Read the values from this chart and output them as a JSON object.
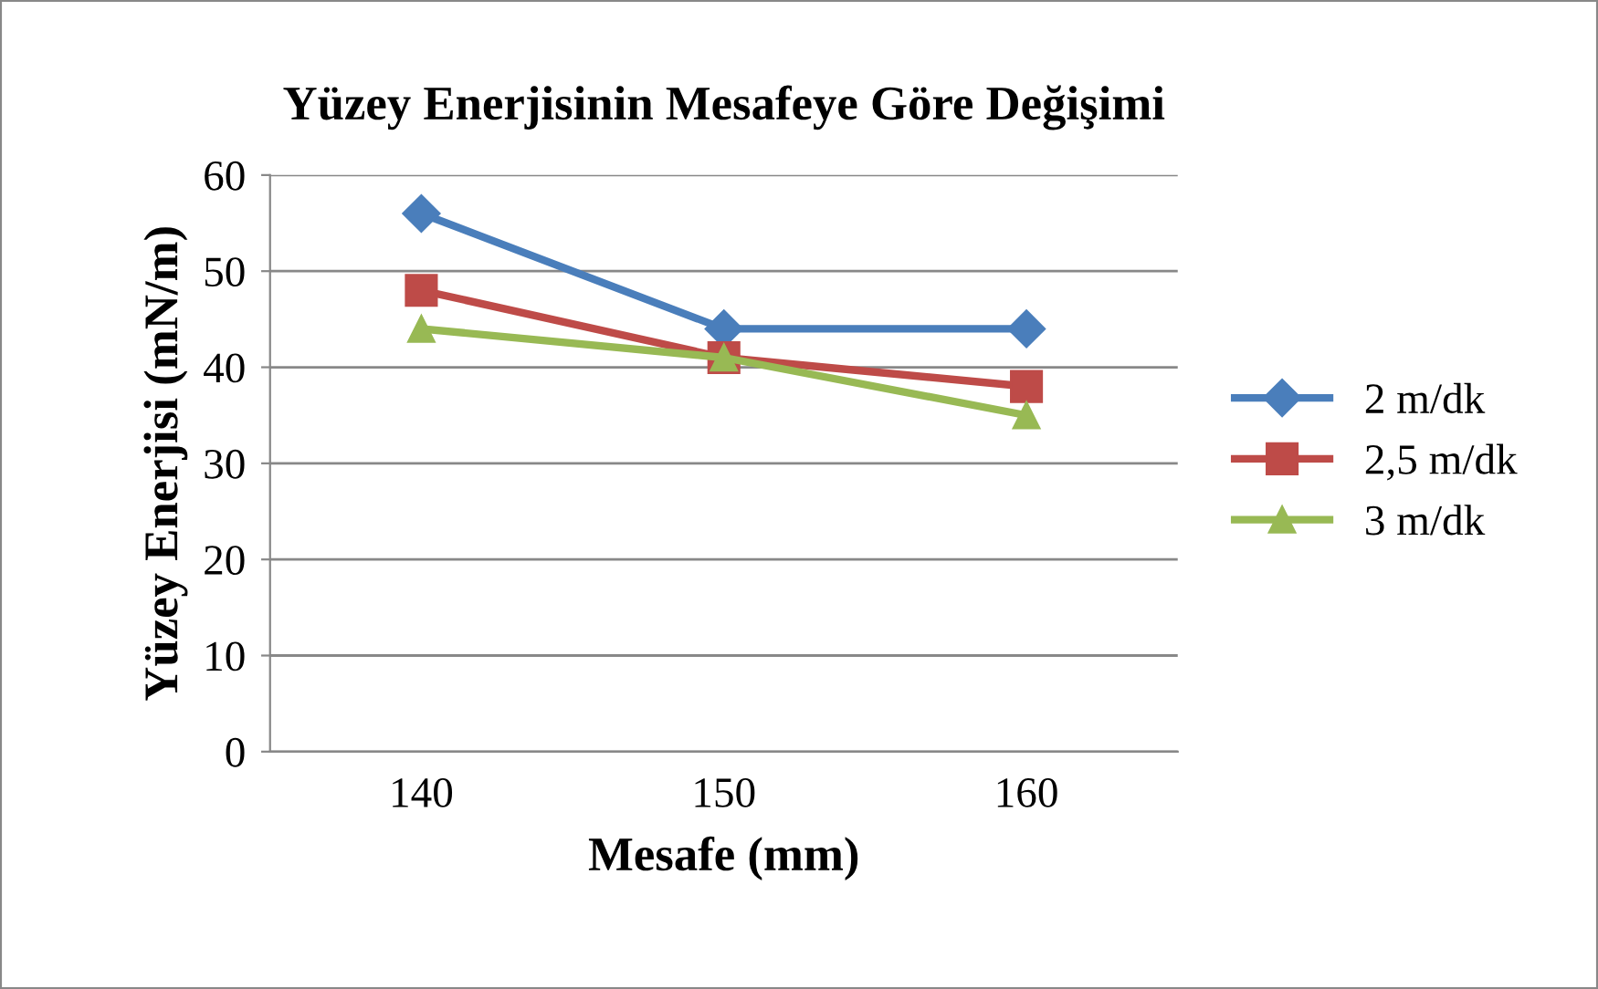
{
  "chart_data": {
    "type": "line",
    "title": "Yüzey Enerjisinin Mesafeye Göre Değişimi",
    "xlabel": "Mesafe (mm)",
    "ylabel": "Yüzey Enerjisi (mN/m)",
    "categories": [
      "140",
      "150",
      "160"
    ],
    "series": [
      {
        "name": "2 m/dk",
        "color": "#4a7ebb",
        "marker": "diamond",
        "values": [
          56,
          44,
          44
        ]
      },
      {
        "name": "2,5 m/dk",
        "color": "#be4b48",
        "marker": "square",
        "values": [
          48,
          41,
          38
        ]
      },
      {
        "name": "3 m/dk",
        "color": "#98b954",
        "marker": "triangle",
        "values": [
          44,
          41,
          35
        ]
      }
    ],
    "ylim": [
      0,
      60
    ],
    "yticks": [
      0,
      10,
      20,
      30,
      40,
      50,
      60
    ],
    "grid": "y",
    "legend": "right",
    "line_style": "solid"
  }
}
